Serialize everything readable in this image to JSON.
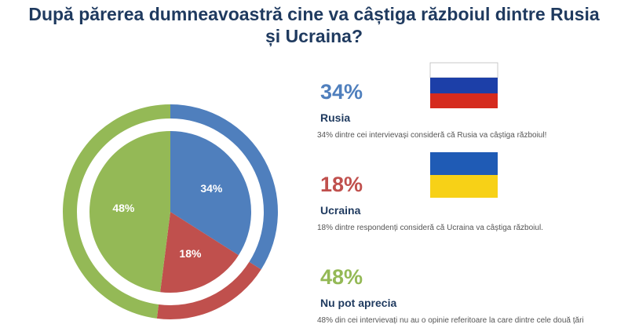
{
  "chart_data": {
    "type": "pie",
    "title": "După părerea dumneavoastră cine va câștiga războiul dintre Rusia și Ucraina?",
    "categories": [
      "Rusia",
      "Ucraina",
      "Nu pot aprecia"
    ],
    "values": [
      34,
      18,
      48
    ],
    "value_labels": [
      "34%",
      "18%",
      "48%"
    ],
    "colors": [
      "#4f7fbd",
      "#c0504d",
      "#94b956"
    ],
    "descriptions": [
      "34% dintre cei intervievași consideră că Rusia va câștiga războiul!",
      "18% dintre respondenți consideră că Ucraina va câștiga războiul.",
      "48% din cei intervievați nu au o opinie referitoare la care dintre cele două țări"
    ]
  }
}
